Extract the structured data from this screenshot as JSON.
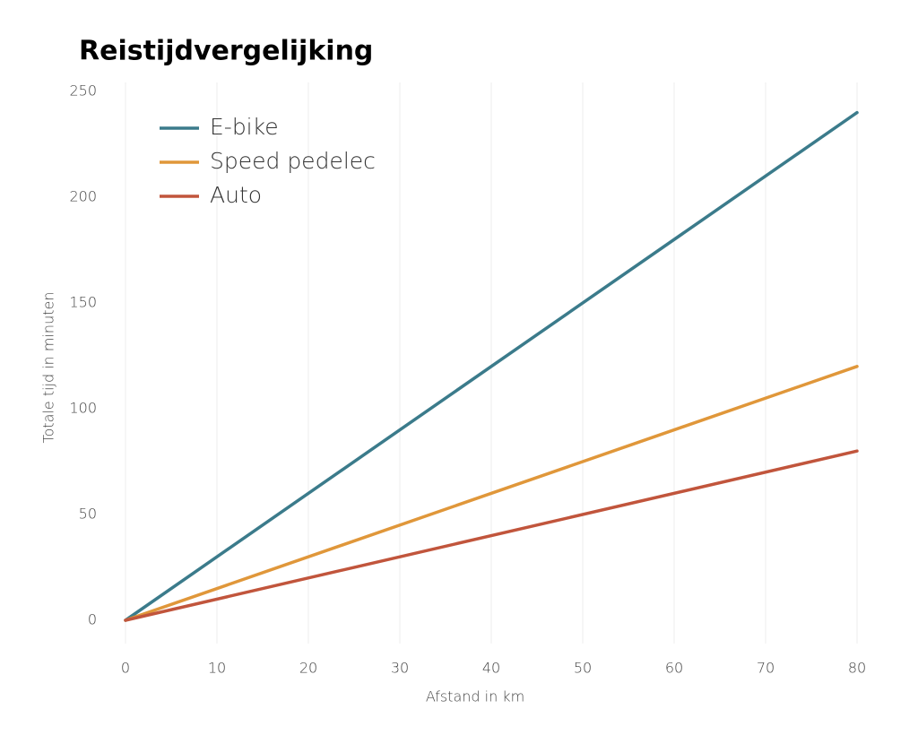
{
  "chart_data": {
    "type": "line",
    "title": "Reistijdvergelijking",
    "x_label": "Afstand in km",
    "y_label": "Totale tijd in minuten",
    "x": [
      0,
      80
    ],
    "series": [
      {
        "name": "E-bike",
        "color": "#3b7b8b",
        "values": [
          0,
          240
        ]
      },
      {
        "name": "Speed pedelec",
        "color": "#e0973a",
        "values": [
          0,
          120
        ]
      },
      {
        "name": "Auto",
        "color": "#c1553c",
        "values": [
          0,
          80
        ]
      }
    ],
    "xlim": [
      0,
      80
    ],
    "xticks": [
      0,
      10,
      20,
      30,
      40,
      50,
      60,
      70,
      80
    ],
    "ylim": [
      0,
      250
    ],
    "yticks": [
      0,
      50,
      100,
      150,
      200,
      250
    ],
    "grid": true,
    "legend": "upper left"
  }
}
